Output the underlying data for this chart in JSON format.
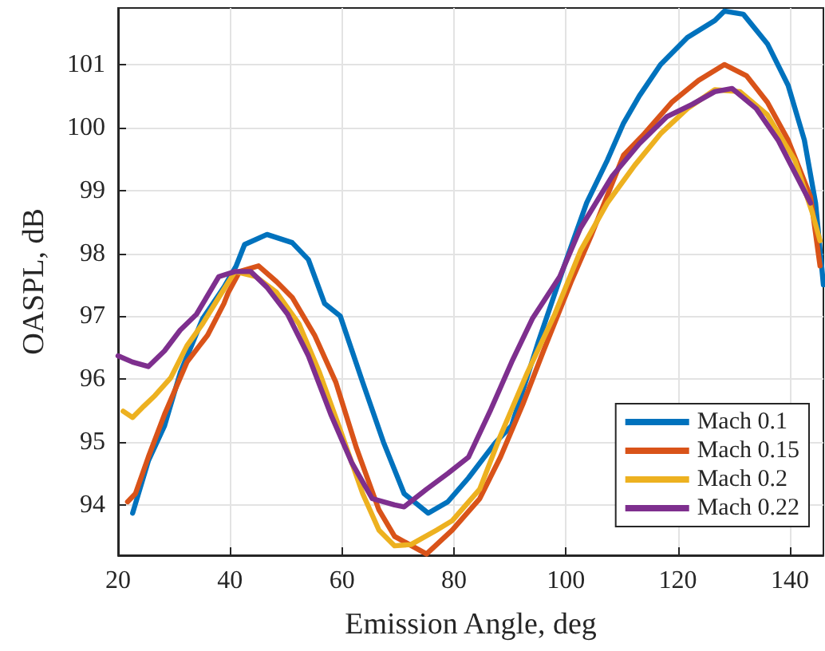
{
  "chart_data": {
    "type": "line",
    "xlabel": "Emission Angle, deg",
    "ylabel": "OASPL, dB",
    "xlim": [
      20,
      146
    ],
    "xticks": [
      20,
      40,
      60,
      80,
      100,
      120,
      140
    ],
    "ylim": [
      93.2,
      101.9
    ],
    "yticks": [
      94,
      95,
      96,
      97,
      98,
      99,
      100,
      101
    ],
    "grid": true,
    "legend": "bottom right",
    "marker": "none",
    "line_style": "solid",
    "series": [
      {
        "name": "Mach 0.1",
        "color": "#0072bd",
        "x": [
          22.6,
          25.4,
          28.3,
          31.1,
          35.1,
          38.9,
          41.1,
          42.6,
          46.6,
          51.1,
          54,
          56.9,
          59.7,
          63.7,
          67.4,
          71.1,
          75.4,
          78.9,
          82.6,
          87.4,
          90.3,
          95.1,
          99.7,
          103.7,
          107.4,
          110.3,
          113.1,
          116.9,
          121.7,
          126.6,
          128.3,
          131.7,
          136,
          139.7,
          142.6,
          144.6,
          146
        ],
        "values": [
          93.87,
          94.7,
          95.26,
          96.1,
          96.96,
          97.46,
          97.8,
          98.14,
          98.3,
          98.17,
          97.9,
          97.2,
          97.0,
          95.95,
          95.0,
          94.18,
          93.87,
          94.05,
          94.43,
          94.99,
          95.26,
          96.6,
          97.8,
          98.8,
          99.48,
          100.07,
          100.5,
          101.0,
          101.43,
          101.7,
          101.85,
          101.8,
          101.33,
          100.67,
          99.8,
          98.8,
          97.5
        ]
      },
      {
        "name": "Mach 0.15",
        "color": "#d95319",
        "x": [
          21.7,
          23.1,
          25.4,
          28.3,
          32.3,
          36,
          38.9,
          39.7,
          41.7,
          45.1,
          48.3,
          51.1,
          55.1,
          58.9,
          62.6,
          66.6,
          69.4,
          75.1,
          79.7,
          84.6,
          88.3,
          92.3,
          96,
          100.9,
          104.6,
          110.3,
          114,
          118.9,
          123.7,
          128.3,
          132.3,
          136,
          139.7,
          143.7,
          145.4
        ],
        "values": [
          94.05,
          94.18,
          94.76,
          95.44,
          96.27,
          96.7,
          97.2,
          97.38,
          97.71,
          97.8,
          97.55,
          97.3,
          96.7,
          95.95,
          94.9,
          93.92,
          93.5,
          93.22,
          93.6,
          94.1,
          94.76,
          95.6,
          96.45,
          97.54,
          98.3,
          99.56,
          99.9,
          100.4,
          100.75,
          101.0,
          100.82,
          100.4,
          99.8,
          98.9,
          97.8
        ]
      },
      {
        "name": "Mach 0.2",
        "color": "#edb120",
        "x": [
          20.9,
          22.6,
          24.6,
          26.6,
          29.4,
          32.3,
          35.1,
          38,
          40.9,
          44.6,
          48.3,
          52.3,
          56,
          59.7,
          63.7,
          66.6,
          69.4,
          72.3,
          76.9,
          79.7,
          84.6,
          88.3,
          93.1,
          98,
          102.6,
          107.4,
          112.3,
          116.9,
          121.7,
          126.6,
          131.1,
          136,
          140.9,
          144,
          145.4
        ],
        "values": [
          95.49,
          95.39,
          95.57,
          95.74,
          96.02,
          96.53,
          96.88,
          97.3,
          97.71,
          97.63,
          97.38,
          96.88,
          96.1,
          95.19,
          94.18,
          93.6,
          93.35,
          93.37,
          93.6,
          93.75,
          94.25,
          95.1,
          96.1,
          97.03,
          98.04,
          98.8,
          99.4,
          99.9,
          100.3,
          100.6,
          100.57,
          100.2,
          99.48,
          98.65,
          98.2
        ]
      },
      {
        "name": "Mach 0.22",
        "color": "#7e2f8e",
        "x": [
          20,
          22.6,
          25.4,
          28.3,
          31.1,
          34,
          38,
          40.9,
          43.7,
          46.6,
          50.3,
          54,
          58,
          61.7,
          65.4,
          69.4,
          71.1,
          75.1,
          78.9,
          82.6,
          86.6,
          90.3,
          94,
          98.9,
          102.6,
          108.3,
          113.1,
          118,
          122.6,
          126.6,
          129.7,
          134,
          137.9,
          143.7
        ],
        "values": [
          96.37,
          96.27,
          96.2,
          96.45,
          96.78,
          97.03,
          97.63,
          97.71,
          97.71,
          97.46,
          97.03,
          96.37,
          95.44,
          94.68,
          94.1,
          94.0,
          93.97,
          94.25,
          94.5,
          94.76,
          95.52,
          96.27,
          96.96,
          97.63,
          98.4,
          99.23,
          99.74,
          100.17,
          100.37,
          100.57,
          100.62,
          100.3,
          99.8,
          98.8
        ]
      }
    ]
  }
}
